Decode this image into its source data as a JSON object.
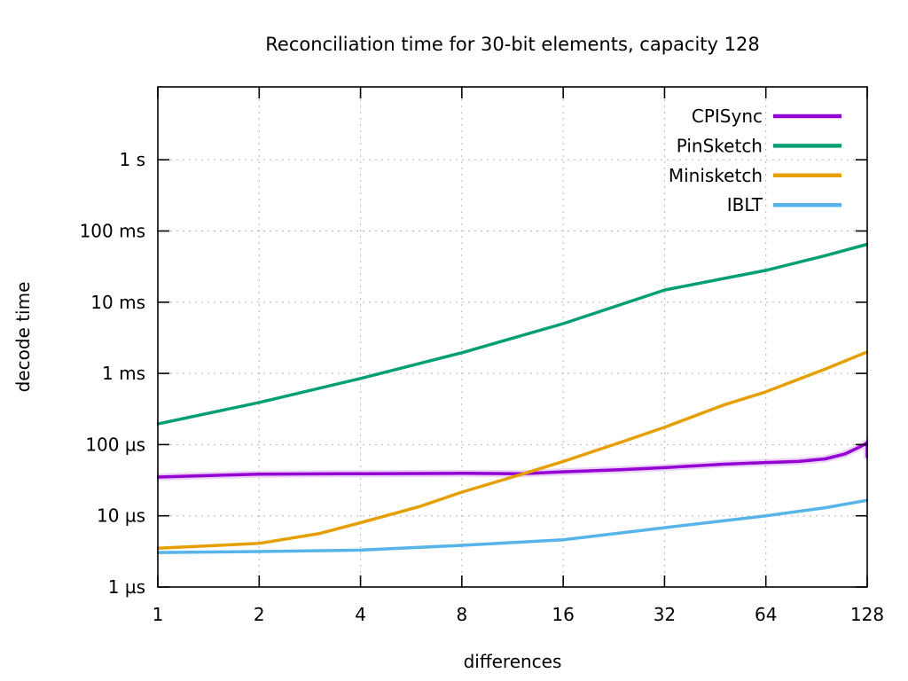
{
  "title": "Reconciliation time for 30-bit elements, capacity 128",
  "axes": {
    "x_label": "differences",
    "y_label": "decode time"
  },
  "legend": {
    "position": "top-right-inside",
    "entries": [
      {
        "label": "CPISync",
        "color": "#9400d3"
      },
      {
        "label": "PinSketch",
        "color": "#009e73"
      },
      {
        "label": "Minisketch",
        "color": "#e69f00"
      },
      {
        "label": "IBLT",
        "color": "#56b4e9"
      }
    ]
  },
  "colors": {
    "background": "#ffffff",
    "border": "#000000",
    "grid": "#b5b5b5",
    "text": "#000000"
  },
  "chart_data": {
    "type": "line",
    "title": "Reconciliation time for 30-bit elements, capacity 128",
    "xlabel": "differences",
    "ylabel": "decode time",
    "x_scale": "log2",
    "y_scale": "log10",
    "grid": true,
    "x_range": [
      1,
      128
    ],
    "y_range_microseconds": [
      1,
      10600000
    ],
    "x_ticks": [
      {
        "label": "1",
        "value": 1
      },
      {
        "label": "2",
        "value": 2
      },
      {
        "label": "4",
        "value": 4
      },
      {
        "label": "8",
        "value": 8
      },
      {
        "label": "16",
        "value": 16
      },
      {
        "label": "32",
        "value": 32
      },
      {
        "label": "64",
        "value": 64
      },
      {
        "label": "128",
        "value": 128
      }
    ],
    "y_ticks": [
      {
        "label": "1 µs",
        "value_us": 1
      },
      {
        "label": "10 µs",
        "value_us": 10
      },
      {
        "label": "100 µs",
        "value_us": 100
      },
      {
        "label": "1 ms",
        "value_us": 1000
      },
      {
        "label": "10 ms",
        "value_us": 10000
      },
      {
        "label": "100 ms",
        "value_us": 100000
      },
      {
        "label": "1 s",
        "value_us": 1000000
      }
    ],
    "series": [
      {
        "name": "CPISync",
        "color": "#9400d3",
        "points_diff_vs_us": [
          [
            1,
            35
          ],
          [
            2,
            38.5
          ],
          [
            4,
            39
          ],
          [
            8,
            39.5
          ],
          [
            12,
            39
          ],
          [
            16,
            41.5
          ],
          [
            24,
            44.5
          ],
          [
            32,
            47.5
          ],
          [
            48,
            53
          ],
          [
            64,
            56
          ],
          [
            80,
            58
          ],
          [
            96,
            63
          ],
          [
            110,
            74
          ],
          [
            120,
            90
          ],
          [
            126,
            101
          ],
          [
            128,
            107
          ],
          [
            128,
            68
          ]
        ]
      },
      {
        "name": "PinSketch",
        "color": "#009e73",
        "points_diff_vs_us": [
          [
            1,
            195
          ],
          [
            2,
            390
          ],
          [
            4,
            850
          ],
          [
            8,
            1950
          ],
          [
            16,
            5000
          ],
          [
            32,
            14800
          ],
          [
            64,
            28000
          ],
          [
            96,
            45000
          ],
          [
            128,
            65000
          ]
        ]
      },
      {
        "name": "Minisketch",
        "color": "#e69f00",
        "points_diff_vs_us": [
          [
            1,
            3.5
          ],
          [
            2,
            4.1
          ],
          [
            3,
            5.6
          ],
          [
            4,
            8
          ],
          [
            6,
            13.5
          ],
          [
            8,
            21.5
          ],
          [
            12,
            38
          ],
          [
            16,
            58
          ],
          [
            24,
            110
          ],
          [
            32,
            175
          ],
          [
            48,
            360
          ],
          [
            64,
            550
          ],
          [
            96,
            1150
          ],
          [
            128,
            2000
          ]
        ]
      },
      {
        "name": "IBLT",
        "color": "#56b4e9",
        "points_diff_vs_us": [
          [
            1,
            3.05
          ],
          [
            2,
            3.15
          ],
          [
            4,
            3.3
          ],
          [
            8,
            3.85
          ],
          [
            16,
            4.6
          ],
          [
            32,
            6.8
          ],
          [
            64,
            10
          ],
          [
            96,
            13
          ],
          [
            128,
            16.5
          ]
        ]
      }
    ]
  }
}
